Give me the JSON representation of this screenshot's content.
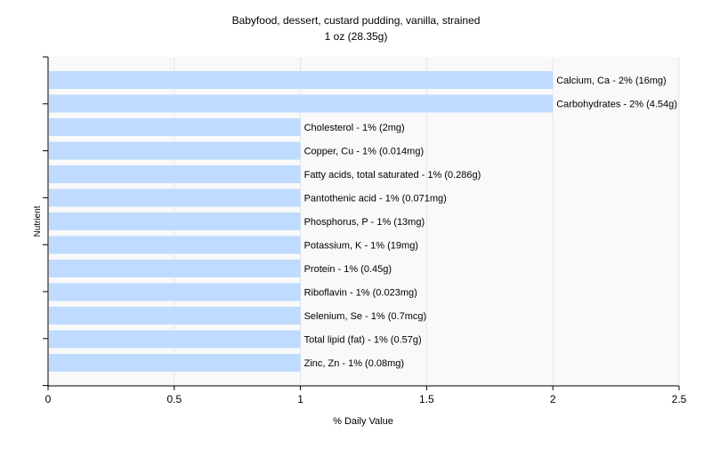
{
  "chart_data": {
    "type": "bar",
    "orientation": "horizontal",
    "title": "Babyfood, dessert, custard pudding, vanilla, strained",
    "subtitle": "1 oz (28.35g)",
    "xlabel": "% Daily Value",
    "ylabel": "Nutrient",
    "xlim": [
      0,
      2.5
    ],
    "xticks": [
      "0",
      "0.5",
      "1",
      "1.5",
      "2",
      "2.5"
    ],
    "grid": true,
    "bar_color": "#bfdbff",
    "categories": [
      "Calcium, Ca",
      "Carbohydrates",
      "Cholesterol",
      "Copper, Cu",
      "Fatty acids, total saturated",
      "Pantothenic acid",
      "Phosphorus, P",
      "Potassium, K",
      "Protein",
      "Riboflavin",
      "Selenium, Se",
      "Total lipid (fat)",
      "Zinc, Zn"
    ],
    "values": [
      2,
      2,
      1,
      1,
      1,
      1,
      1,
      1,
      1,
      1,
      1,
      1,
      1
    ],
    "labels": [
      "Calcium, Ca - 2% (16mg)",
      "Carbohydrates - 2% (4.54g)",
      "Cholesterol - 1% (2mg)",
      "Copper, Cu - 1% (0.014mg)",
      "Fatty acids, total saturated - 1% (0.286g)",
      "Pantothenic acid - 1% (0.071mg)",
      "Phosphorus, P - 1% (13mg)",
      "Potassium, K - 1% (19mg)",
      "Protein - 1% (0.45g)",
      "Riboflavin - 1% (0.023mg)",
      "Selenium, Se - 1% (0.7mcg)",
      "Total lipid (fat) - 1% (0.57g)",
      "Zinc, Zn - 1% (0.08mg)"
    ]
  }
}
